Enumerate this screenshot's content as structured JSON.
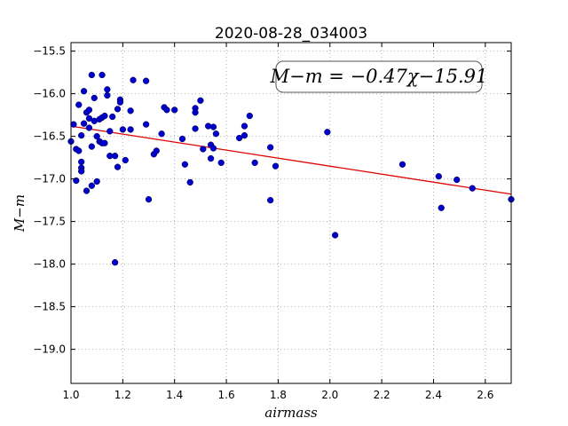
{
  "chart_data": {
    "type": "scatter",
    "title": "2020-08-28_034003",
    "xlabel": "airmass",
    "ylabel": "M−m",
    "xlim": [
      1.0,
      2.7
    ],
    "ylim": [
      -19.4,
      -15.4
    ],
    "xticks": [
      1.0,
      1.2,
      1.4,
      1.6,
      1.8,
      2.0,
      2.2,
      2.4,
      2.6
    ],
    "xtick_labels": [
      "1.0",
      "1.2",
      "1.4",
      "1.6",
      "1.8",
      "2.0",
      "2.2",
      "2.4",
      "2.6"
    ],
    "yticks": [
      -15.5,
      -16.0,
      -16.5,
      -17.0,
      -17.5,
      -18.0,
      -18.5,
      -19.0
    ],
    "ytick_labels": [
      "−15.5",
      "−16.0",
      "−16.5",
      "−17.0",
      "−17.5",
      "−18.0",
      "−18.5",
      "−19.0"
    ],
    "grid": true,
    "annotation": "M−m = −0.47χ−15.91",
    "colors": {
      "points": "#0000cc",
      "fit": "#dd0000",
      "grid": "#b0b0b0"
    },
    "fit_line": {
      "slope": -0.47,
      "intercept": -15.91
    },
    "points": [
      [
        1.0,
        -16.56
      ],
      [
        1.01,
        -16.36
      ],
      [
        1.02,
        -16.65
      ],
      [
        1.02,
        -17.02
      ],
      [
        1.03,
        -16.67
      ],
      [
        1.03,
        -16.13
      ],
      [
        1.04,
        -16.8
      ],
      [
        1.04,
        -16.87
      ],
      [
        1.04,
        -16.91
      ],
      [
        1.04,
        -16.49
      ],
      [
        1.05,
        -15.97
      ],
      [
        1.05,
        -16.35
      ],
      [
        1.06,
        -16.22
      ],
      [
        1.06,
        -17.14
      ],
      [
        1.07,
        -16.29
      ],
      [
        1.07,
        -16.19
      ],
      [
        1.07,
        -16.4
      ],
      [
        1.08,
        -16.62
      ],
      [
        1.08,
        -15.78
      ],
      [
        1.08,
        -17.08
      ],
      [
        1.09,
        -16.05
      ],
      [
        1.09,
        -16.32
      ],
      [
        1.1,
        -17.03
      ],
      [
        1.1,
        -16.5
      ],
      [
        1.11,
        -16.56
      ],
      [
        1.11,
        -16.3
      ],
      [
        1.12,
        -16.58
      ],
      [
        1.12,
        -16.28
      ],
      [
        1.12,
        -15.78
      ],
      [
        1.13,
        -16.58
      ],
      [
        1.13,
        -16.26
      ],
      [
        1.14,
        -15.95
      ],
      [
        1.14,
        -16.02
      ],
      [
        1.15,
        -16.73
      ],
      [
        1.15,
        -16.44
      ],
      [
        1.16,
        -16.27
      ],
      [
        1.17,
        -16.73
      ],
      [
        1.17,
        -17.98
      ],
      [
        1.18,
        -16.86
      ],
      [
        1.18,
        -16.18
      ],
      [
        1.19,
        -16.07
      ],
      [
        1.19,
        -16.1
      ],
      [
        1.2,
        -16.42
      ],
      [
        1.21,
        -16.78
      ],
      [
        1.23,
        -16.42
      ],
      [
        1.23,
        -16.2
      ],
      [
        1.24,
        -15.84
      ],
      [
        1.29,
        -15.85
      ],
      [
        1.29,
        -16.36
      ],
      [
        1.3,
        -17.24
      ],
      [
        1.32,
        -16.71
      ],
      [
        1.33,
        -16.67
      ],
      [
        1.35,
        -16.47
      ],
      [
        1.36,
        -16.16
      ],
      [
        1.37,
        -16.19
      ],
      [
        1.4,
        -16.19
      ],
      [
        1.43,
        -16.53
      ],
      [
        1.44,
        -16.83
      ],
      [
        1.46,
        -17.04
      ],
      [
        1.48,
        -16.41
      ],
      [
        1.48,
        -16.17
      ],
      [
        1.48,
        -16.22
      ],
      [
        1.5,
        -16.08
      ],
      [
        1.51,
        -16.65
      ],
      [
        1.53,
        -16.38
      ],
      [
        1.54,
        -16.6
      ],
      [
        1.54,
        -16.76
      ],
      [
        1.55,
        -16.39
      ],
      [
        1.55,
        -16.64
      ],
      [
        1.56,
        -16.47
      ],
      [
        1.58,
        -16.81
      ],
      [
        1.65,
        -16.52
      ],
      [
        1.67,
        -16.38
      ],
      [
        1.67,
        -16.49
      ],
      [
        1.69,
        -16.26
      ],
      [
        1.71,
        -16.81
      ],
      [
        1.77,
        -16.63
      ],
      [
        1.77,
        -17.25
      ],
      [
        1.79,
        -16.85
      ],
      [
        1.99,
        -16.45
      ],
      [
        2.02,
        -17.66
      ],
      [
        2.28,
        -16.83
      ],
      [
        2.42,
        -16.97
      ],
      [
        2.43,
        -17.34
      ],
      [
        2.49,
        -17.01
      ],
      [
        2.55,
        -17.11
      ],
      [
        2.7,
        -17.24
      ]
    ]
  }
}
